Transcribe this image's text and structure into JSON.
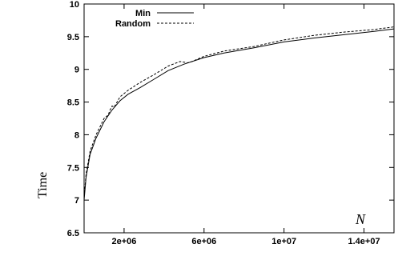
{
  "chart_data": {
    "type": "line",
    "title": "",
    "xlabel": "N",
    "ylabel": "Time",
    "xlim": [
      0,
      15500000
    ],
    "ylim": [
      6.5,
      10
    ],
    "xticks": [
      2000000,
      6000000,
      10000000,
      14000000
    ],
    "xtick_labels": [
      "2e+06",
      "6e+06",
      "1e+07",
      "1.4e+07"
    ],
    "yticks": [
      6.5,
      7,
      7.5,
      8,
      8.5,
      9,
      9.5,
      10
    ],
    "ytick_labels": [
      "6.5",
      "7",
      "7.5",
      "8",
      "8.5",
      "9",
      "9.5",
      "10"
    ],
    "grid": false,
    "legend_position": "top-left",
    "series": [
      {
        "name": "Min",
        "style": "solid",
        "x": [
          0,
          100000,
          300000,
          600000,
          1000000,
          1400000,
          1800000,
          2200000,
          2800000,
          3500000,
          4200000,
          5000000,
          6000000,
          7000000,
          8500000,
          10000000,
          11500000,
          13000000,
          14500000,
          15500000
        ],
        "y": [
          7.0,
          7.35,
          7.7,
          7.95,
          8.2,
          8.38,
          8.52,
          8.62,
          8.72,
          8.85,
          8.98,
          9.08,
          9.18,
          9.25,
          9.33,
          9.42,
          9.48,
          9.53,
          9.58,
          9.62
        ]
      },
      {
        "name": "Random",
        "style": "dashed",
        "x": [
          0,
          100000,
          300000,
          600000,
          1000000,
          1200000,
          1300000,
          1400000,
          1500000,
          1800000,
          2200000,
          2800000,
          3500000,
          4200000,
          4800000,
          5200000,
          5400000,
          6000000,
          7000000,
          8500000,
          10000000,
          11500000,
          13000000,
          14500000,
          15500000
        ],
        "y": [
          7.05,
          7.4,
          7.75,
          8.0,
          8.25,
          8.3,
          8.38,
          8.44,
          8.42,
          8.58,
          8.68,
          8.8,
          8.92,
          9.05,
          9.12,
          9.1,
          9.12,
          9.2,
          9.28,
          9.35,
          9.45,
          9.52,
          9.57,
          9.61,
          9.65
        ]
      }
    ]
  }
}
